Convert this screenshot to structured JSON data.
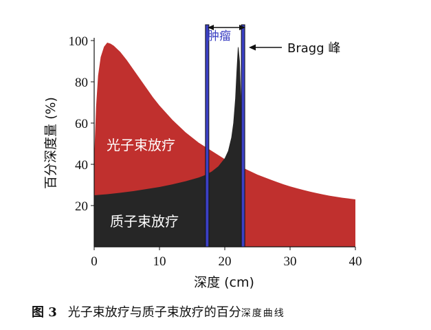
{
  "chart_data": {
    "type": "area",
    "xlabel": "深度 (cm)",
    "ylabel": "百分深度量 (%)",
    "xlim": [
      0,
      40
    ],
    "ylim": [
      0,
      100
    ],
    "xticks": [
      "0",
      "10",
      "20",
      "30",
      "40"
    ],
    "yticks": [
      "20",
      "40",
      "60",
      "80",
      "100"
    ],
    "grid": false,
    "series": [
      {
        "name": "光子束放疗",
        "color": "#c0302e",
        "x": [
          0,
          0.3,
          0.6,
          1.0,
          1.5,
          2.0,
          2.5,
          3.0,
          4,
          5,
          6,
          7,
          8,
          9,
          10,
          11,
          12,
          13,
          14,
          15,
          16,
          17,
          18,
          19,
          20,
          21,
          22,
          23,
          24,
          25,
          26,
          27,
          28,
          29,
          30,
          31,
          32,
          33,
          34,
          35,
          36,
          37,
          38,
          39,
          40
        ],
        "values": [
          43,
          68,
          83,
          92,
          97,
          99,
          98.5,
          97.5,
          94.5,
          90.5,
          86,
          81.5,
          77,
          72.5,
          68.5,
          65,
          61.5,
          58.5,
          55.5,
          53,
          50.5,
          48.5,
          46.5,
          44.5,
          42.5,
          40.8,
          39.3,
          38,
          36.5,
          35,
          33.8,
          32.6,
          31.4,
          30.3,
          29.3,
          28.4,
          27.6,
          26.8,
          26.1,
          25.4,
          24.8,
          24.3,
          23.8,
          23.4,
          23
        ]
      },
      {
        "name": "质子束放疗",
        "color": "#262626",
        "x": [
          0,
          2,
          4,
          6,
          8,
          10,
          12,
          14,
          16,
          17,
          18,
          19,
          20,
          20.5,
          21,
          21.3,
          21.6,
          21.8,
          22.0,
          22.1,
          22.3,
          22.5,
          22.7,
          22.9,
          23.1
        ],
        "values": [
          25,
          25.5,
          26.2,
          27,
          28,
          29,
          30.3,
          31.8,
          33.6,
          34.8,
          36.5,
          39,
          43,
          46.5,
          53,
          60,
          72,
          85,
          96.5,
          97,
          90,
          70,
          40,
          12,
          0
        ]
      }
    ],
    "annotations": {
      "tumor_label": "肿瘤",
      "tumor_band_x": [
        17.3,
        22.8
      ],
      "bragg_label": "Bragg 峰",
      "bragg_peak": [
        22.1,
        97
      ]
    }
  },
  "caption": {
    "number": "图 3",
    "text": "光子束放疗与质子束放疗的百分",
    "small": "深度曲线"
  }
}
